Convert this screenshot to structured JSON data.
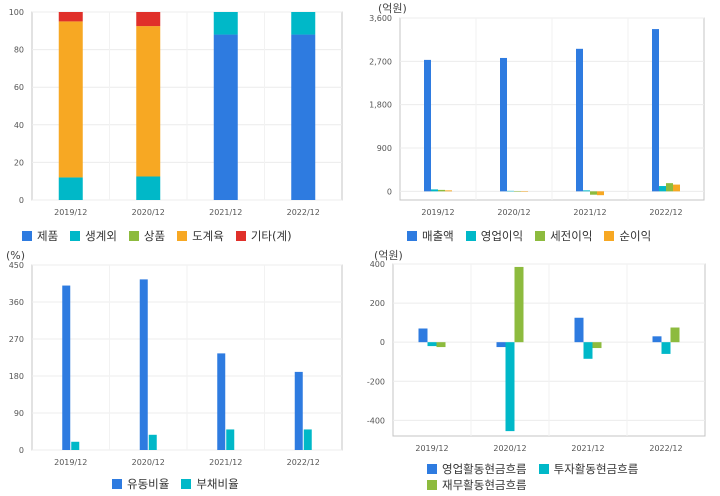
{
  "chart_data": [
    {
      "type": "bar",
      "stacked": true,
      "unit": "",
      "categories": [
        "2019/12",
        "2020/12",
        "2021/12",
        "2022/12"
      ],
      "ylim": [
        0,
        100
      ],
      "yticks": [
        0,
        20,
        40,
        60,
        80,
        100
      ],
      "series": [
        {
          "name": "제품",
          "color": "#2e7be0",
          "values": [
            0,
            0,
            88,
            88
          ]
        },
        {
          "name": "생계외",
          "color": "#00b8c8",
          "values": [
            12,
            12.5,
            12,
            12
          ]
        },
        {
          "name": "상품",
          "color": "#8dbb3e",
          "values": [
            0,
            0,
            0,
            0
          ]
        },
        {
          "name": "도계육",
          "color": "#f7a823",
          "values": [
            83,
            80,
            0,
            0
          ]
        },
        {
          "name": "기타(계)",
          "color": "#e0302a",
          "values": [
            5,
            7.5,
            0,
            0
          ]
        }
      ],
      "grid": true,
      "legend_position": "bottom"
    },
    {
      "type": "bar",
      "unit": "(억원)",
      "categories": [
        "2019/12",
        "2020/12",
        "2021/12",
        "2022/12"
      ],
      "ylim": [
        -180,
        3600
      ],
      "yticks": [
        0,
        900,
        1800,
        2700,
        3600
      ],
      "series": [
        {
          "name": "매출액",
          "color": "#2e7be0",
          "values": [
            2730,
            2770,
            2960,
            3370
          ]
        },
        {
          "name": "영업이익",
          "color": "#00b8c8",
          "values": [
            40,
            10,
            20,
            110
          ]
        },
        {
          "name": "세전이익",
          "color": "#8dbb3e",
          "values": [
            30,
            -10,
            -70,
            170
          ]
        },
        {
          "name": "순이익",
          "color": "#f7a823",
          "values": [
            20,
            -10,
            -80,
            140
          ]
        }
      ],
      "grid": true,
      "legend_position": "bottom"
    },
    {
      "type": "bar",
      "unit": "(%)",
      "categories": [
        "2019/12",
        "2020/12",
        "2021/12",
        "2022/12"
      ],
      "ylim": [
        0,
        450
      ],
      "yticks": [
        0,
        90,
        180,
        270,
        360,
        450
      ],
      "series": [
        {
          "name": "유동비율",
          "color": "#2e7be0",
          "values": [
            400,
            415,
            235,
            190
          ]
        },
        {
          "name": "부채비율",
          "color": "#00b8c8",
          "values": [
            20,
            37,
            50,
            50
          ]
        }
      ],
      "grid": true,
      "legend_position": "bottom"
    },
    {
      "type": "bar",
      "unit": "(억원)",
      "categories": [
        "2019/12",
        "2020/12",
        "2021/12",
        "2022/12"
      ],
      "ylim": [
        -480,
        400
      ],
      "yticks": [
        -400,
        -200,
        0,
        200,
        400
      ],
      "series": [
        {
          "name": "영업활동현금흐름",
          "color": "#2e7be0",
          "values": [
            70,
            -25,
            125,
            30
          ]
        },
        {
          "name": "투자활동현금흐름",
          "color": "#00b8c8",
          "values": [
            -20,
            -455,
            -85,
            -60
          ]
        },
        {
          "name": "재무활동현금흐름",
          "color": "#8dbb3e",
          "values": [
            -25,
            385,
            -30,
            75
          ]
        }
      ],
      "grid": true,
      "legend_position": "bottom"
    }
  ]
}
